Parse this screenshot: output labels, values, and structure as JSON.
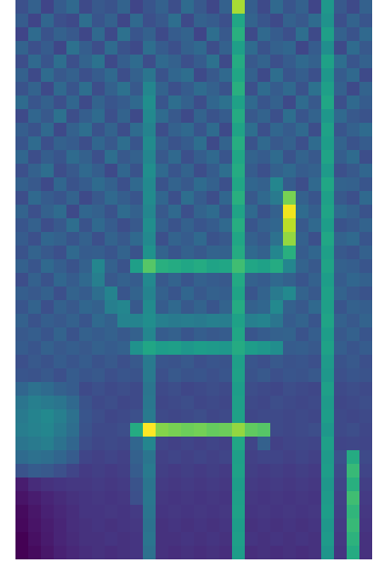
{
  "chart_data": {
    "type": "heatmap",
    "color": "viridis",
    "tick_labels": false,
    "cells": [
      [
        24,
        30,
        20,
        28,
        33,
        22,
        27,
        25,
        31,
        20,
        26,
        30,
        23,
        34,
        27,
        21,
        30,
        85,
        29,
        22,
        33,
        26,
        30,
        20,
        52,
        27,
        22,
        30
      ],
      [
        28,
        20,
        32,
        24,
        22,
        35,
        26,
        30,
        21,
        33,
        24,
        27,
        35,
        22,
        30,
        28,
        24,
        58,
        31,
        26,
        22,
        30,
        27,
        34,
        50,
        24,
        31,
        26
      ],
      [
        20,
        34,
        25,
        30,
        27,
        21,
        33,
        22,
        36,
        26,
        30,
        22,
        28,
        31,
        20,
        35,
        27,
        62,
        22,
        33,
        28,
        24,
        35,
        22,
        55,
        30,
        25,
        33
      ],
      [
        31,
        24,
        28,
        21,
        36,
        29,
        23,
        34,
        25,
        22,
        35,
        28,
        24,
        30,
        33,
        23,
        30,
        55,
        34,
        25,
        30,
        32,
        21,
        28,
        48,
        22,
        34,
        27
      ],
      [
        23,
        33,
        26,
        35,
        24,
        31,
        37,
        22,
        29,
        34,
        23,
        33,
        30,
        24,
        28,
        36,
        22,
        60,
        27,
        31,
        24,
        28,
        33,
        30,
        56,
        35,
        26,
        30
      ],
      [
        30,
        22,
        34,
        27,
        30,
        24,
        28,
        33,
        23,
        30,
        38,
        25,
        32,
        35,
        22,
        27,
        33,
        58,
        30,
        22,
        35,
        26,
        29,
        24,
        52,
        28,
        33,
        22
      ],
      [
        25,
        31,
        22,
        33,
        26,
        35,
        23,
        30,
        36,
        27,
        45,
        31,
        24,
        28,
        34,
        30,
        25,
        62,
        24,
        34,
        28,
        33,
        25,
        36,
        55,
        30,
        22,
        31
      ],
      [
        34,
        26,
        30,
        24,
        32,
        22,
        31,
        26,
        28,
        33,
        48,
        26,
        35,
        30,
        23,
        32,
        36,
        56,
        33,
        26,
        30,
        22,
        34,
        27,
        58,
        24,
        33,
        28
      ],
      [
        22,
        32,
        27,
        36,
        23,
        29,
        34,
        24,
        31,
        22,
        46,
        34,
        27,
        22,
        31,
        25,
        28,
        60,
        27,
        31,
        24,
        35,
        26,
        31,
        52,
        33,
        27,
        25
      ],
      [
        29,
        25,
        33,
        22,
        30,
        35,
        25,
        31,
        23,
        34,
        44,
        23,
        30,
        33,
        26,
        34,
        22,
        57,
        35,
        24,
        32,
        28,
        33,
        23,
        56,
        26,
        30,
        34
      ],
      [
        26,
        34,
        24,
        30,
        28,
        23,
        32,
        27,
        35,
        26,
        47,
        30,
        25,
        28,
        35,
        22,
        31,
        61,
        25,
        33,
        27,
        30,
        24,
        34,
        54,
        31,
        25,
        28
      ],
      [
        32,
        23,
        29,
        26,
        34,
        30,
        24,
        35,
        27,
        30,
        45,
        27,
        33,
        24,
        29,
        33,
        26,
        58,
        31,
        28,
        34,
        25,
        31,
        27,
        57,
        29,
        34,
        23
      ],
      [
        24,
        30,
        35,
        23,
        27,
        33,
        29,
        22,
        32,
        25,
        48,
        33,
        26,
        31,
        23,
        28,
        35,
        60,
        28,
        24,
        30,
        33,
        28,
        30,
        53,
        24,
        27,
        32
      ],
      [
        30,
        27,
        22,
        32,
        25,
        28,
        34,
        30,
        24,
        33,
        46,
        25,
        31,
        27,
        34,
        30,
        24,
        58,
        32,
        30,
        45,
        28,
        23,
        33,
        58,
        31,
        30,
        26
      ],
      [
        23,
        33,
        28,
        26,
        31,
        22,
        27,
        33,
        29,
        26,
        47,
        32,
        24,
        35,
        28,
        23,
        32,
        62,
        27,
        33,
        40,
        78,
        30,
        26,
        55,
        27,
        24,
        33
      ],
      [
        31,
        24,
        30,
        34,
        22,
        32,
        30,
        25,
        34,
        30,
        45,
        27,
        33,
        24,
        31,
        34,
        26,
        57,
        33,
        25,
        30,
        96,
        34,
        29,
        57,
        33,
        30,
        25
      ],
      [
        26,
        30,
        23,
        27,
        35,
        25,
        33,
        28,
        23,
        27,
        48,
        30,
        25,
        30,
        26,
        28,
        33,
        61,
        26,
        30,
        32,
        88,
        27,
        33,
        54,
        25,
        27,
        31
      ],
      [
        28,
        24,
        32,
        30,
        26,
        30,
        24,
        31,
        27,
        33,
        46,
        24,
        31,
        28,
        33,
        25,
        27,
        58,
        30,
        27,
        36,
        82,
        30,
        24,
        58,
        31,
        33,
        26
      ],
      [
        25,
        31,
        27,
        24,
        33,
        28,
        29,
        26,
        31,
        25,
        50,
        31,
        26,
        30,
        27,
        31,
        30,
        60,
        33,
        30,
        45,
        62,
        28,
        32,
        55,
        27,
        25,
        30
      ],
      [
        30,
        26,
        33,
        29,
        25,
        30,
        45,
        30,
        25,
        55,
        72,
        62,
        60,
        58,
        60,
        57,
        58,
        68,
        58,
        56,
        60,
        45,
        31,
        27,
        57,
        30,
        29,
        26
      ],
      [
        23,
        30,
        25,
        32,
        28,
        33,
        42,
        27,
        30,
        28,
        46,
        27,
        31,
        26,
        30,
        28,
        27,
        59,
        30,
        28,
        33,
        30,
        26,
        30,
        54,
        28,
        32,
        30
      ],
      [
        29,
        27,
        30,
        24,
        31,
        28,
        35,
        44,
        26,
        31,
        44,
        30,
        26,
        32,
        27,
        30,
        29,
        57,
        26,
        31,
        40,
        46,
        31,
        27,
        56,
        31,
        27,
        25
      ],
      [
        26,
        31,
        24,
        30,
        27,
        32,
        30,
        42,
        45,
        27,
        47,
        28,
        33,
        27,
        31,
        26,
        31,
        60,
        30,
        32,
        46,
        30,
        27,
        33,
        55,
        26,
        30,
        29
      ],
      [
        30,
        25,
        29,
        27,
        30,
        26,
        33,
        30,
        44,
        44,
        48,
        42,
        40,
        41,
        40,
        42,
        41,
        56,
        42,
        44,
        38,
        28,
        31,
        26,
        57,
        30,
        27,
        31
      ],
      [
        27,
        29,
        26,
        31,
        25,
        30,
        28,
        30,
        27,
        30,
        45,
        28,
        30,
        26,
        29,
        27,
        28,
        58,
        26,
        28,
        30,
        31,
        25,
        29,
        54,
        27,
        30,
        26
      ],
      [
        28,
        26,
        30,
        27,
        29,
        27,
        30,
        28,
        30,
        50,
        58,
        54,
        55,
        52,
        54,
        53,
        52,
        60,
        54,
        52,
        48,
        28,
        29,
        27,
        56,
        29,
        26,
        28
      ],
      [
        24,
        27,
        25,
        28,
        26,
        28,
        25,
        27,
        24,
        27,
        40,
        26,
        25,
        27,
        24,
        26,
        25,
        55,
        26,
        24,
        27,
        25,
        26,
        24,
        53,
        25,
        27,
        24
      ],
      [
        26,
        25,
        27,
        24,
        28,
        26,
        27,
        24,
        26,
        25,
        40,
        24,
        27,
        25,
        26,
        24,
        26,
        56,
        25,
        27,
        24,
        26,
        25,
        27,
        52,
        24,
        26,
        25
      ],
      [
        32,
        36,
        34,
        30,
        28,
        22,
        24,
        22,
        23,
        22,
        38,
        22,
        23,
        21,
        22,
        23,
        22,
        54,
        23,
        22,
        21,
        23,
        22,
        21,
        55,
        22,
        23,
        22
      ],
      [
        38,
        42,
        40,
        38,
        33,
        25,
        22,
        23,
        21,
        22,
        39,
        21,
        22,
        23,
        21,
        22,
        21,
        55,
        22,
        21,
        23,
        22,
        21,
        22,
        53,
        21,
        22,
        23
      ],
      [
        40,
        44,
        46,
        42,
        36,
        26,
        23,
        21,
        22,
        24,
        40,
        22,
        21,
        22,
        23,
        21,
        22,
        56,
        21,
        22,
        22,
        21,
        22,
        21,
        54,
        22,
        21,
        22
      ],
      [
        41,
        43,
        45,
        40,
        35,
        25,
        22,
        22,
        23,
        60,
        98,
        80,
        78,
        76,
        77,
        75,
        76,
        82,
        74,
        72,
        22,
        21,
        22,
        23,
        52,
        22,
        23,
        21
      ],
      [
        38,
        40,
        42,
        37,
        32,
        23,
        21,
        22,
        21,
        32,
        45,
        20,
        19,
        20,
        19,
        20,
        19,
        58,
        20,
        30,
        19,
        20,
        21,
        20,
        55,
        20,
        21,
        20
      ],
      [
        34,
        36,
        35,
        32,
        28,
        20,
        19,
        20,
        19,
        30,
        38,
        19,
        20,
        19,
        20,
        19,
        20,
        55,
        19,
        20,
        20,
        19,
        20,
        19,
        53,
        24,
        60,
        22
      ],
      [
        25,
        28,
        27,
        24,
        20,
        17,
        18,
        17,
        18,
        28,
        40,
        18,
        17,
        18,
        17,
        18,
        17,
        56,
        18,
        17,
        18,
        17,
        18,
        17,
        54,
        22,
        66,
        20
      ],
      [
        8,
        12,
        14,
        15,
        16,
        16,
        17,
        16,
        17,
        25,
        38,
        17,
        16,
        17,
        16,
        17,
        16,
        54,
        17,
        16,
        17,
        16,
        17,
        16,
        52,
        20,
        62,
        18
      ],
      [
        5,
        8,
        10,
        12,
        14,
        15,
        16,
        15,
        16,
        24,
        39,
        16,
        15,
        16,
        15,
        16,
        15,
        55,
        16,
        15,
        16,
        15,
        16,
        15,
        53,
        19,
        68,
        17
      ],
      [
        3,
        6,
        9,
        11,
        13,
        15,
        15,
        16,
        15,
        17,
        38,
        15,
        16,
        15,
        16,
        15,
        16,
        56,
        15,
        16,
        15,
        16,
        15,
        16,
        54,
        18,
        64,
        16
      ],
      [
        2,
        5,
        8,
        10,
        13,
        14,
        15,
        14,
        15,
        16,
        37,
        14,
        15,
        14,
        15,
        14,
        15,
        54,
        14,
        15,
        14,
        15,
        14,
        15,
        52,
        17,
        66,
        15
      ],
      [
        0,
        4,
        7,
        10,
        12,
        14,
        14,
        15,
        14,
        15,
        38,
        14,
        14,
        15,
        14,
        15,
        14,
        55,
        15,
        14,
        15,
        14,
        15,
        14,
        53,
        16,
        63,
        14
      ],
      [
        0,
        3,
        6,
        9,
        11,
        13,
        14,
        13,
        14,
        15,
        36,
        14,
        13,
        14,
        13,
        14,
        13,
        54,
        13,
        14,
        13,
        14,
        13,
        14,
        51,
        15,
        60,
        14
      ]
    ]
  }
}
